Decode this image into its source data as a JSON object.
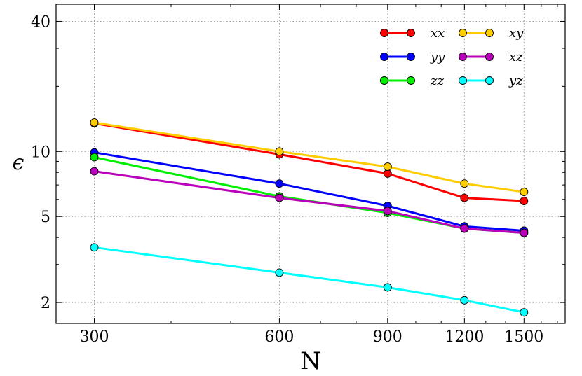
{
  "chart_data": {
    "type": "line",
    "xlabel": "N",
    "ylabel": "ϵ",
    "x_scale": "log",
    "y_scale": "log",
    "xlim": [
      260,
      1750
    ],
    "ylim": [
      1.6,
      48
    ],
    "x": [
      300,
      600,
      900,
      1200,
      1500
    ],
    "xticks": [
      300,
      600,
      900,
      1200,
      1500
    ],
    "xtick_labels": [
      "300",
      "600",
      "900",
      "1200",
      "1500"
    ],
    "yticks": [
      2,
      5,
      10,
      40
    ],
    "ytick_labels": [
      "2",
      "5",
      "10",
      "40"
    ],
    "grid": true,
    "legend": {
      "position": "top-right",
      "columns": 2
    },
    "series": [
      {
        "name": "xx",
        "color": "#ff0000",
        "values": [
          13.5,
          9.7,
          7.9,
          6.1,
          5.9
        ]
      },
      {
        "name": "yy",
        "color": "#0000ff",
        "values": [
          9.9,
          7.1,
          5.6,
          4.5,
          4.3
        ]
      },
      {
        "name": "zz",
        "color": "#00ee00",
        "values": [
          9.4,
          6.2,
          5.2,
          4.4,
          4.2
        ]
      },
      {
        "name": "xy",
        "color": "#ffcc00",
        "values": [
          13.6,
          10.0,
          8.5,
          7.1,
          6.5
        ]
      },
      {
        "name": "xz",
        "color": "#bb00bb",
        "values": [
          8.1,
          6.1,
          5.3,
          4.4,
          4.2
        ]
      },
      {
        "name": "yz",
        "color": "#00ffff",
        "values": [
          3.6,
          2.75,
          2.35,
          2.05,
          1.8
        ]
      }
    ]
  }
}
